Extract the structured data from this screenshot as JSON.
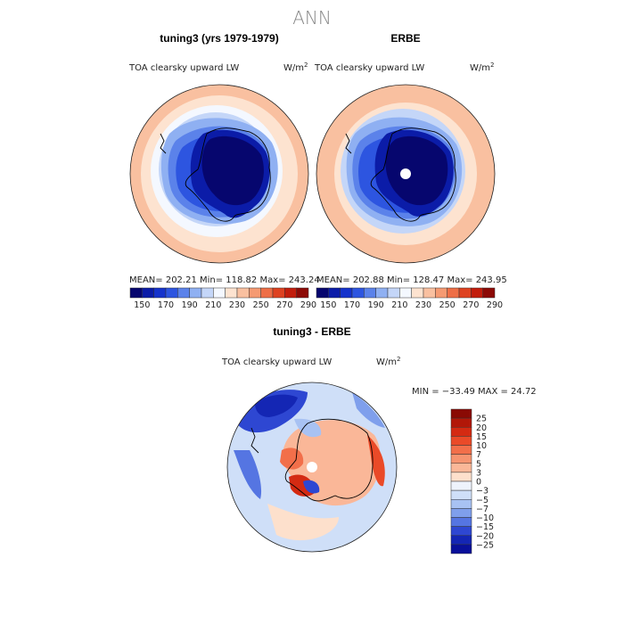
{
  "title": "ANN",
  "panel_top_left": {
    "title": "tuning3 (yrs 1979-1979)",
    "variable": "TOA clearsky upward LW",
    "unit_base": "W/m",
    "unit_exp": "2",
    "stats": "MEAN= 202.21   Min= 118.82   Max= 243.24"
  },
  "panel_top_right": {
    "title": "ERBE",
    "variable": "TOA clearsky upward LW",
    "unit_base": "W/m",
    "unit_exp": "2",
    "stats": "MEAN= 202.88   Min= 128.47   Max= 243.95"
  },
  "panel_bottom": {
    "title": "tuning3 - ERBE",
    "variable": "TOA clearsky upward LW",
    "unit_base": "W/m",
    "unit_exp": "2",
    "stats": "MIN = −33.49 MAX =  24.72"
  },
  "chart_data": [
    {
      "type": "heatmap",
      "projection": "south-polar-stereographic",
      "title": "tuning3 (yrs 1979-1979)",
      "variable": "TOA clearsky upward LW",
      "units": "W/m2",
      "mean": 202.21,
      "min": 118.82,
      "max": 243.24,
      "colorbar": {
        "labels": [
          "150",
          "170",
          "190",
          "210",
          "230",
          "250",
          "270",
          "290"
        ],
        "colors": [
          "#06066e",
          "#0b1ca8",
          "#1533cc",
          "#2d55e0",
          "#5b82ea",
          "#8fb0f2",
          "#c4d6f8",
          "#f4f8ff",
          "#fde3d0",
          "#f9c0a0",
          "#f59a72",
          "#ee6e46",
          "#de4221",
          "#c21d0c",
          "#8c0a06"
        ]
      }
    },
    {
      "type": "heatmap",
      "projection": "south-polar-stereographic",
      "title": "ERBE",
      "variable": "TOA clearsky upward LW",
      "units": "W/m2",
      "mean": 202.88,
      "min": 128.47,
      "max": 243.95,
      "colorbar": {
        "labels": [
          "150",
          "170",
          "190",
          "210",
          "230",
          "250",
          "270",
          "290"
        ],
        "colors": [
          "#06066e",
          "#0b1ca8",
          "#1533cc",
          "#2d55e0",
          "#5b82ea",
          "#8fb0f2",
          "#c4d6f8",
          "#f4f8ff",
          "#fde3d0",
          "#f9c0a0",
          "#f59a72",
          "#ee6e46",
          "#de4221",
          "#c21d0c",
          "#8c0a06"
        ]
      }
    },
    {
      "type": "heatmap",
      "projection": "south-polar-stereographic",
      "title": "tuning3 - ERBE",
      "variable": "TOA clearsky upward LW",
      "units": "W/m2",
      "min": -33.49,
      "max": 24.72,
      "colorbar": {
        "labels": [
          "25",
          "20",
          "15",
          "10",
          "7",
          "5",
          "3",
          "0",
          "−3",
          "−5",
          "−7",
          "−10",
          "−15",
          "−20",
          "−25"
        ],
        "colors": [
          "#8a0a04",
          "#b21708",
          "#d42a12",
          "#ea4a28",
          "#f26f4a",
          "#f69470",
          "#fab798",
          "#fde0cc",
          "#eef3fc",
          "#cfdff8",
          "#a8c2f3",
          "#7f9fec",
          "#5575e2",
          "#2e47d2",
          "#1426b4",
          "#09109a"
        ]
      }
    }
  ]
}
